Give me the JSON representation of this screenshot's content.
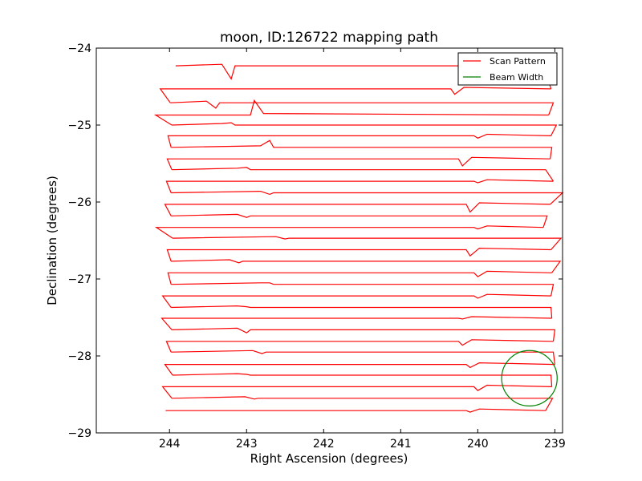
{
  "chart_data": {
    "type": "line",
    "title": "moon, ID:126722 mapping path",
    "xlabel": "Right Ascension (degrees)",
    "ylabel": "Declination (degrees)",
    "xlim": [
      244.95,
      238.9
    ],
    "ylim": [
      -29,
      -24
    ],
    "x_inverted": true,
    "xticks": [
      244,
      243,
      242,
      241,
      240,
      239
    ],
    "xtick_labels": [
      "244",
      "243",
      "242",
      "241",
      "240",
      "239"
    ],
    "yticks": [
      -24,
      -25,
      -26,
      -27,
      -28,
      -29
    ],
    "ytick_labels": [
      "−24",
      "−25",
      "−26",
      "−27",
      "−28",
      "−29"
    ],
    "legend": {
      "placement": "top-right",
      "entries": [
        {
          "label": "Scan Pattern",
          "color": "#ff0000"
        },
        {
          "label": "Beam Width",
          "color": "#008000"
        }
      ]
    },
    "series": [
      {
        "name": "Scan Pattern",
        "color": "#ff0000",
        "scan_rows": [
          {
            "dec": -24.23,
            "x_start": 243.92,
            "x_end": 239.14,
            "kink_x": 243.2,
            "kink_dec": -24.4
          },
          {
            "dec": -24.53,
            "x_start": 244.12,
            "x_end": 239.05,
            "kink_x": 240.3,
            "kink_dec": -24.6
          },
          {
            "dec": -24.71,
            "x_start": 243.99,
            "x_end": 239.02,
            "kink_x": 243.4,
            "kink_dec": -24.78
          },
          {
            "dec": -24.87,
            "x_start": 244.18,
            "x_end": 239.08,
            "kink_x": 242.9,
            "kink_dec": -24.68
          },
          {
            "dec": -25.0,
            "x_start": 243.97,
            "x_end": 238.98,
            "kink_x": 243.2,
            "kink_dec": -24.97
          },
          {
            "dec": -25.14,
            "x_start": 244.02,
            "x_end": 239.05,
            "kink_x": 240.0,
            "kink_dec": -25.17
          },
          {
            "dec": -25.29,
            "x_start": 243.98,
            "x_end": 239.04,
            "kink_x": 242.7,
            "kink_dec": -25.2
          },
          {
            "dec": -25.44,
            "x_start": 244.03,
            "x_end": 239.06,
            "kink_x": 240.2,
            "kink_dec": -25.53
          },
          {
            "dec": -25.58,
            "x_start": 243.97,
            "x_end": 239.12,
            "kink_x": 243.0,
            "kink_dec": -25.55
          },
          {
            "dec": -25.73,
            "x_start": 244.04,
            "x_end": 239.02,
            "kink_x": 240.0,
            "kink_dec": -25.75
          },
          {
            "dec": -25.88,
            "x_start": 243.98,
            "x_end": 238.9,
            "kink_x": 242.7,
            "kink_dec": -25.9
          },
          {
            "dec": -26.03,
            "x_start": 244.06,
            "x_end": 239.06,
            "kink_x": 240.1,
            "kink_dec": -26.13
          },
          {
            "dec": -26.18,
            "x_start": 243.98,
            "x_end": 239.1,
            "kink_x": 243.0,
            "kink_dec": -26.2
          },
          {
            "dec": -26.33,
            "x_start": 244.17,
            "x_end": 239.15,
            "kink_x": 240.0,
            "kink_dec": -26.35
          },
          {
            "dec": -26.47,
            "x_start": 243.96,
            "x_end": 238.92,
            "kink_x": 242.5,
            "kink_dec": -26.48
          },
          {
            "dec": -26.62,
            "x_start": 244.03,
            "x_end": 239.05,
            "kink_x": 240.1,
            "kink_dec": -26.7
          },
          {
            "dec": -26.77,
            "x_start": 243.98,
            "x_end": 238.93,
            "kink_x": 243.1,
            "kink_dec": -26.79
          },
          {
            "dec": -26.92,
            "x_start": 244.02,
            "x_end": 239.04,
            "kink_x": 240.0,
            "kink_dec": -26.97
          },
          {
            "dec": -27.07,
            "x_start": 243.98,
            "x_end": 239.02,
            "kink_x": 242.7,
            "kink_dec": -27.05
          },
          {
            "dec": -27.22,
            "x_start": 244.09,
            "x_end": 239.05,
            "kink_x": 240.0,
            "kink_dec": -27.25
          },
          {
            "dec": -27.37,
            "x_start": 243.98,
            "x_end": 239.05,
            "kink_x": 243.0,
            "kink_dec": -27.36
          },
          {
            "dec": -27.51,
            "x_start": 244.1,
            "x_end": 239.04,
            "kink_x": 240.2,
            "kink_dec": -27.52
          },
          {
            "dec": -27.66,
            "x_start": 243.97,
            "x_end": 239.0,
            "kink_x": 243.0,
            "kink_dec": -27.7
          },
          {
            "dec": -27.81,
            "x_start": 244.04,
            "x_end": 239.02,
            "kink_x": 240.2,
            "kink_dec": -27.86
          },
          {
            "dec": -27.95,
            "x_start": 243.98,
            "x_end": 239.02,
            "kink_x": 242.8,
            "kink_dec": -27.97
          },
          {
            "dec": -28.11,
            "x_start": 244.06,
            "x_end": 239.0,
            "kink_x": 240.1,
            "kink_dec": -28.15
          },
          {
            "dec": -28.25,
            "x_start": 243.96,
            "x_end": 239.05,
            "kink_x": 243.0,
            "kink_dec": -28.24
          },
          {
            "dec": -28.4,
            "x_start": 244.09,
            "x_end": 239.04,
            "kink_x": 240.0,
            "kink_dec": -28.45
          },
          {
            "dec": -28.55,
            "x_start": 243.97,
            "x_end": 239.03,
            "kink_x": 242.9,
            "kink_dec": -28.56
          },
          {
            "dec": -28.71,
            "x_start": 244.05,
            "x_end": 239.12,
            "kink_x": 240.1,
            "kink_dec": -28.73
          }
        ]
      },
      {
        "name": "Beam Width",
        "color": "#008000",
        "circle": {
          "center_ra": 239.33,
          "center_dec": -28.29,
          "radius_deg": 0.36
        }
      }
    ]
  }
}
